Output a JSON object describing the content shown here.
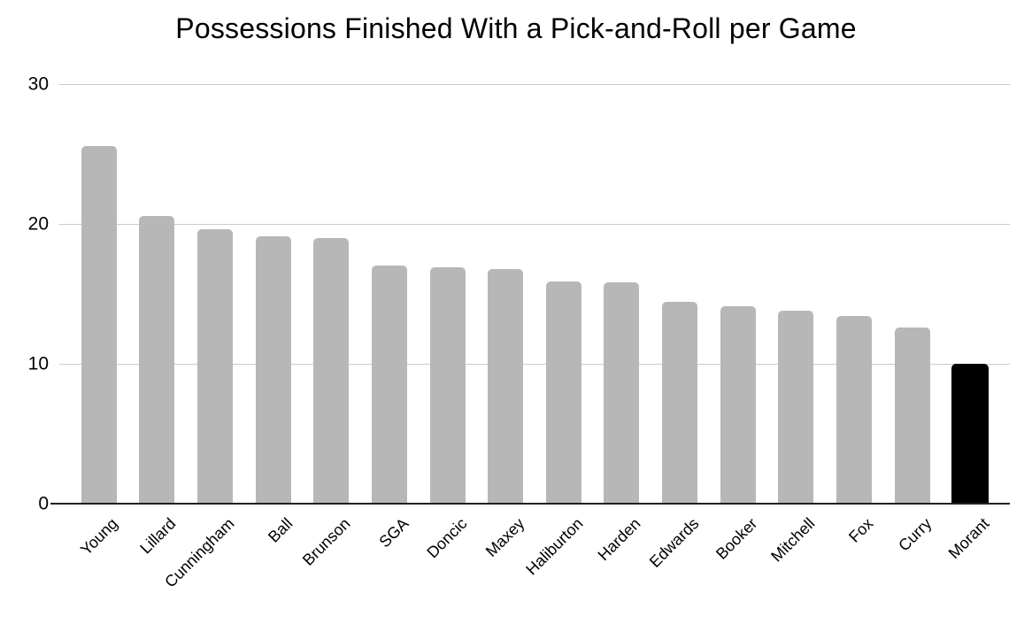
{
  "chart_data": {
    "type": "bar",
    "title": "Possessions Finished With a Pick-and-Roll per Game",
    "xlabel": "",
    "ylabel": "",
    "categories": [
      "Young",
      "Lillard",
      "Cunningham",
      "Ball",
      "Brunson",
      "SGA",
      "Doncic",
      "Maxey",
      "Haliburton",
      "Harden",
      "Edwards",
      "Booker",
      "Mitchell",
      "Fox",
      "Curry",
      "Morant"
    ],
    "values": [
      25.6,
      20.6,
      19.6,
      19.1,
      19.0,
      17.0,
      16.9,
      16.8,
      15.9,
      15.8,
      14.4,
      14.1,
      13.8,
      13.4,
      12.6,
      10.0
    ],
    "highlight_category": "Morant",
    "ylim": [
      0,
      30
    ],
    "y_ticks": [
      0,
      10,
      20,
      30
    ],
    "grid": true,
    "legend": "none",
    "colors": {
      "bar": "#b7b7b7",
      "highlight_bar": "#000000",
      "gridline": "#cccccc",
      "axis_line": "#212121",
      "text": "#000000"
    }
  }
}
